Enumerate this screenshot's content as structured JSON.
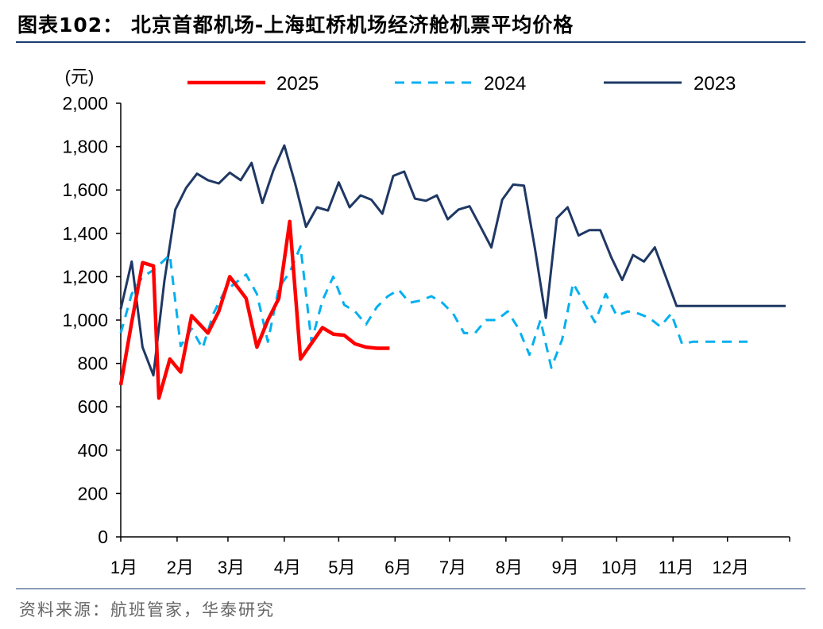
{
  "figure": {
    "title": "图表102：  北京首都机场-上海虹桥机场经济舱机票平均价格",
    "source": "资料来源：航班管家，华泰研究"
  },
  "chart_data": {
    "type": "line",
    "ylabel": "(元)",
    "ylim": [
      0,
      2000
    ],
    "yticks": [
      "0",
      "200",
      "400",
      "600",
      "800",
      "1,000",
      "1,200",
      "1,400",
      "1,600",
      "1,800",
      "2,000"
    ],
    "xlim": [
      0,
      52.6
    ],
    "xticks": [
      {
        "x": 0,
        "label": "1月"
      },
      {
        "x": 4.43,
        "label": "2月"
      },
      {
        "x": 8.43,
        "label": "3月"
      },
      {
        "x": 12.86,
        "label": "4月"
      },
      {
        "x": 17.14,
        "label": "5月"
      },
      {
        "x": 21.57,
        "label": "6月"
      },
      {
        "x": 25.86,
        "label": "7月"
      },
      {
        "x": 30.29,
        "label": "8月"
      },
      {
        "x": 34.71,
        "label": "9月"
      },
      {
        "x": 39.0,
        "label": "10月"
      },
      {
        "x": 43.43,
        "label": "11月"
      },
      {
        "x": 47.71,
        "label": "12月"
      }
    ],
    "x_unit": "week of year",
    "legend_position": "top",
    "series": [
      {
        "name": "2025",
        "color": "#ff0000",
        "style": "solid",
        "x": [
          0,
          0.83,
          1.72,
          2.57,
          3.0,
          3.86,
          4.71,
          5.57,
          6.86,
          7.71,
          8.57,
          9.86,
          10.71,
          11.57,
          12.43,
          13.29,
          14.14,
          15.86,
          16.71,
          17.57,
          18.43,
          19.29,
          20.14,
          21.14
        ],
        "values": [
          700,
          980,
          1265,
          1250,
          640,
          820,
          760,
          1020,
          940,
          1040,
          1200,
          1100,
          875,
          1000,
          1100,
          1455,
          820,
          965,
          935,
          930,
          890,
          875,
          870,
          870
        ]
      },
      {
        "name": "2024",
        "color": "#00b0f0",
        "style": "dashed",
        "x": [
          0,
          0.86,
          1.71,
          2.57,
          3.86,
          4.71,
          5.57,
          6.43,
          7.29,
          8.14,
          9.0,
          9.86,
          10.71,
          11.57,
          12.43,
          13.29,
          14.14,
          15.0,
          15.86,
          16.71,
          17.57,
          18.43,
          19.29,
          20.14,
          21.0,
          21.86,
          22.71,
          23.57,
          24.43,
          25.29,
          26.14,
          27.0,
          27.86,
          28.71,
          29.57,
          30.43,
          31.29,
          32.14,
          33.0,
          33.86,
          34.71,
          35.57,
          36.43,
          37.29,
          38.14,
          39.0,
          39.86,
          40.71,
          41.57,
          42.43,
          43.29,
          44.14,
          45.0,
          45.86,
          46.71,
          47.57,
          48.43,
          49.29
        ],
        "values": [
          940,
          1120,
          1200,
          1230,
          1300,
          880,
          960,
          870,
          1030,
          1130,
          1170,
          1210,
          1120,
          900,
          1150,
          1220,
          1340,
          900,
          1090,
          1200,
          1070,
          1040,
          980,
          1060,
          1110,
          1140,
          1080,
          1090,
          1110,
          1080,
          1030,
          940,
          940,
          1000,
          1000,
          1040,
          960,
          840,
          1000,
          780,
          910,
          1170,
          1080,
          990,
          1120,
          1020,
          1040,
          1030,
          1010,
          970,
          1030,
          890,
          900,
          900,
          900,
          900,
          900,
          900
        ]
      },
      {
        "name": "2023",
        "color": "#1f3864",
        "style": "solid",
        "x": [
          0,
          0.86,
          1.71,
          2.57,
          3.43,
          4.29,
          5.14,
          6.0,
          6.86,
          7.71,
          8.57,
          9.43,
          10.29,
          11.14,
          12.0,
          12.86,
          13.71,
          14.57,
          15.43,
          16.29,
          17.14,
          18.0,
          18.86,
          19.71,
          20.57,
          21.43,
          22.29,
          23.14,
          24.0,
          24.86,
          25.71,
          26.57,
          27.43,
          28.29,
          29.14,
          30.0,
          30.86,
          31.71,
          32.57,
          33.43,
          34.29,
          35.14,
          36.0,
          36.86,
          37.71,
          38.57,
          39.43,
          40.29,
          41.14,
          42.0,
          42.86,
          43.71,
          44.57,
          45.43,
          46.29,
          47.14,
          48.0,
          48.86,
          49.71,
          50.57,
          51.43,
          52.29
        ],
        "values": [
          1050,
          1270,
          875,
          745,
          1180,
          1510,
          1610,
          1675,
          1645,
          1630,
          1680,
          1645,
          1725,
          1540,
          1690,
          1805,
          1630,
          1430,
          1520,
          1505,
          1635,
          1520,
          1575,
          1555,
          1490,
          1665,
          1685,
          1560,
          1550,
          1575,
          1465,
          1510,
          1525,
          1430,
          1335,
          1555,
          1625,
          1620,
          1330,
          1010,
          1470,
          1520,
          1390,
          1415,
          1415,
          1290,
          1185,
          1300,
          1270,
          1335,
          1200,
          1065,
          1065,
          1065,
          1065,
          1065,
          1065,
          1065,
          1065,
          1065,
          1065,
          1065
        ]
      }
    ]
  }
}
